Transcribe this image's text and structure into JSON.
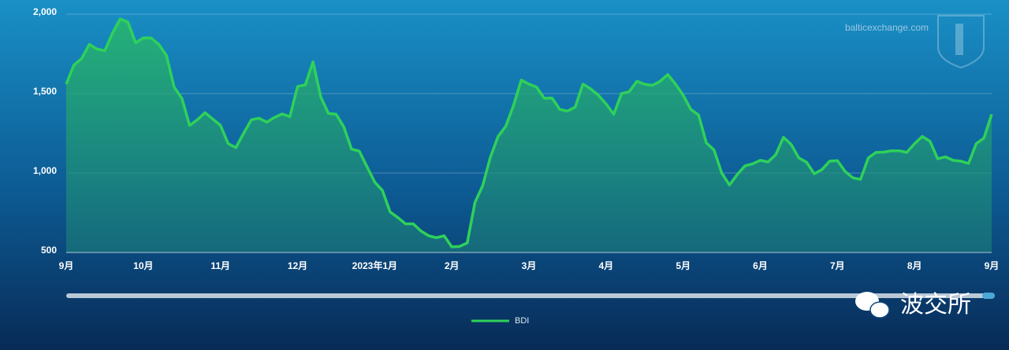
{
  "chart_data": {
    "type": "line",
    "source": "balticexchange.com",
    "categories": [
      "9月",
      null,
      null,
      null,
      null,
      null,
      null,
      null,
      null,
      null,
      "10月",
      null,
      null,
      null,
      null,
      null,
      null,
      null,
      null,
      null,
      "11月",
      null,
      null,
      null,
      null,
      null,
      null,
      null,
      null,
      null,
      "12月",
      null,
      null,
      null,
      null,
      null,
      null,
      null,
      null,
      null,
      "2023年1月",
      null,
      null,
      null,
      null,
      null,
      null,
      null,
      null,
      null,
      "2月",
      null,
      null,
      null,
      null,
      null,
      null,
      null,
      null,
      null,
      "3月",
      null,
      null,
      null,
      null,
      null,
      null,
      null,
      null,
      null,
      "4月",
      null,
      null,
      null,
      null,
      null,
      null,
      null,
      null,
      null,
      "5月",
      null,
      null,
      null,
      null,
      null,
      null,
      null,
      null,
      null,
      "6月",
      null,
      null,
      null,
      null,
      null,
      null,
      null,
      null,
      null,
      "7月",
      null,
      null,
      null,
      null,
      null,
      null,
      null,
      null,
      null,
      "8月",
      null,
      null,
      null,
      null,
      null,
      null,
      null,
      null,
      null,
      "9月"
    ],
    "series": [
      {
        "name": "BDI",
        "color": "#2ed15a",
        "values": [
          1560,
          1680,
          1720,
          1810,
          1780,
          1770,
          1880,
          1970,
          1950,
          1820,
          1850,
          1850,
          1810,
          1740,
          1540,
          1470,
          1300,
          1335,
          1380,
          1340,
          1300,
          1185,
          1160,
          1250,
          1335,
          1345,
          1320,
          1350,
          1372,
          1355,
          1545,
          1555,
          1700,
          1480,
          1375,
          1370,
          1290,
          1150,
          1138,
          1040,
          943,
          890,
          755,
          720,
          680,
          680,
          635,
          605,
          593,
          605,
          535,
          538,
          560,
          815,
          920,
          1100,
          1230,
          1295,
          1425,
          1585,
          1560,
          1540,
          1470,
          1472,
          1400,
          1390,
          1415,
          1560,
          1530,
          1490,
          1435,
          1370,
          1500,
          1512,
          1578,
          1559,
          1552,
          1577,
          1620,
          1560,
          1490,
          1400,
          1365,
          1190,
          1145,
          1000,
          925,
          990,
          1045,
          1058,
          1080,
          1070,
          1115,
          1225,
          1180,
          1095,
          1068,
          995,
          1022,
          1075,
          1078,
          1010,
          970,
          960,
          1095,
          1130,
          1132,
          1140,
          1140,
          1130,
          1185,
          1230,
          1200,
          1090,
          1102,
          1080,
          1075,
          1060,
          1185,
          1220,
          1370
        ]
      }
    ],
    "ylim": [
      500,
      2000
    ],
    "yticks": [
      {
        "value": 500,
        "label": "500"
      },
      {
        "value": 1000,
        "label": "1,000"
      },
      {
        "value": 1500,
        "label": "1,500"
      },
      {
        "value": 2000,
        "label": "2,000"
      }
    ],
    "grid": true
  },
  "watermark": "波交所"
}
